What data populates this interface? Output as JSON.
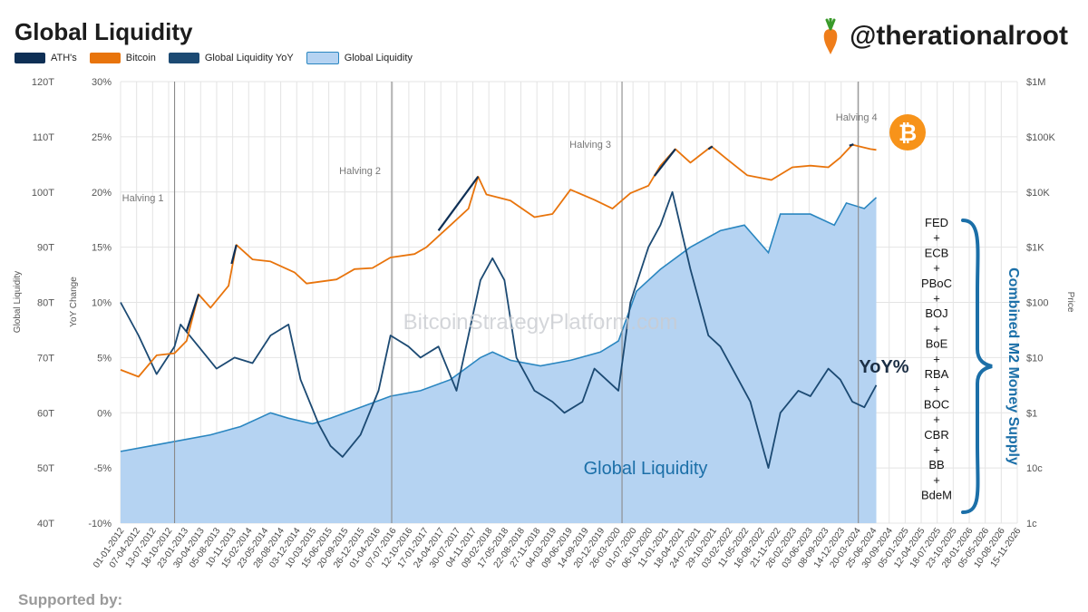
{
  "page": {
    "title": "Global Liquidity",
    "handle": "@therationalroot",
    "supported_by": "Supported by:"
  },
  "colors": {
    "ath": "#0e2f55",
    "bitcoin": "#e8740c",
    "yoy": "#1c4a73",
    "liquidity_fill": "#b5d3f2",
    "liquidity_line": "#2a86c0",
    "annotation": "#1b6fa8",
    "grid": "#e4e4e4",
    "halving": "#8a8a8a"
  },
  "chart_data": {
    "type": "line",
    "title": "Global Liquidity",
    "legend": [
      {
        "name": "ATH's",
        "color": "#0e2f55",
        "style": "line"
      },
      {
        "name": "Bitcoin",
        "color": "#e8740c",
        "style": "line"
      },
      {
        "name": "Global Liquidity YoY",
        "color": "#1c4a73",
        "style": "line"
      },
      {
        "name": "Global Liquidity",
        "color": "#b5d3f2",
        "style": "area"
      }
    ],
    "axes": {
      "left_liquidity": {
        "label": "Global Liquidity",
        "range": [
          40,
          120
        ],
        "ticks": [
          "40T",
          "50T",
          "60T",
          "70T",
          "80T",
          "90T",
          "100T",
          "110T",
          "120T"
        ]
      },
      "left_yoy": {
        "label": "YoY Change",
        "range": [
          -10,
          30
        ],
        "ticks": [
          "-10%",
          "-5%",
          "0%",
          "5%",
          "10%",
          "15%",
          "20%",
          "25%",
          "30%"
        ]
      },
      "right_price": {
        "label": "Price",
        "scale": "log",
        "range": [
          0.01,
          1000000
        ],
        "ticks": [
          "1c",
          "10c",
          "$1",
          "$10",
          "$100",
          "$1K",
          "$10K",
          "$100K",
          "$1M"
        ]
      },
      "x_dates": [
        "01-01-2012",
        "07-04-2012",
        "13-07-2012",
        "18-10-2012",
        "23-01-2013",
        "30-04-2013",
        "05-08-2013",
        "10-11-2013",
        "15-02-2014",
        "23-05-2014",
        "28-08-2014",
        "03-12-2014",
        "10-03-2015",
        "15-06-2015",
        "20-09-2015",
        "26-12-2015",
        "01-04-2016",
        "07-07-2016",
        "12-10-2016",
        "17-01-2017",
        "24-04-2017",
        "30-07-2017",
        "04-11-2017",
        "09-02-2018",
        "17-05-2018",
        "22-08-2018",
        "27-11-2018",
        "04-03-2019",
        "09-06-2019",
        "14-09-2019",
        "20-12-2019",
        "26-03-2020",
        "01-07-2020",
        "06-10-2020",
        "11-01-2021",
        "18-04-2021",
        "24-07-2021",
        "29-10-2021",
        "03-02-2022",
        "11-05-2022",
        "16-08-2022",
        "21-11-2022",
        "26-02-2023",
        "03-06-2023",
        "08-09-2023",
        "14-12-2023",
        "20-03-2024",
        "25-06-2024",
        "30-09-2024",
        "05-01-2025",
        "12-04-2025",
        "18-07-2025",
        "23-10-2025",
        "28-01-2026",
        "05-05-2026",
        "10-08-2026",
        "15-11-2026"
      ]
    },
    "halvings": [
      {
        "label": "Halving 1",
        "year": 2012.9
      },
      {
        "label": "Halving 2",
        "year": 2016.52
      },
      {
        "label": "Halving 3",
        "year": 2020.36
      },
      {
        "label": "Halving 4",
        "year": 2024.3
      }
    ],
    "series": [
      {
        "name": "Global Liquidity",
        "unit": "T USD",
        "points": [
          [
            2012.0,
            53
          ],
          [
            2012.5,
            54
          ],
          [
            2013.0,
            55
          ],
          [
            2013.5,
            56
          ],
          [
            2014.0,
            57.5
          ],
          [
            2014.5,
            60
          ],
          [
            2014.8,
            59
          ],
          [
            2015.2,
            58
          ],
          [
            2015.5,
            59
          ],
          [
            2016.0,
            61
          ],
          [
            2016.5,
            63
          ],
          [
            2017.0,
            64
          ],
          [
            2017.5,
            66
          ],
          [
            2018.0,
            70
          ],
          [
            2018.2,
            71
          ],
          [
            2018.5,
            69.5
          ],
          [
            2019.0,
            68.5
          ],
          [
            2019.5,
            69.5
          ],
          [
            2020.0,
            71
          ],
          [
            2020.3,
            73
          ],
          [
            2020.6,
            82
          ],
          [
            2021.0,
            86
          ],
          [
            2021.5,
            90
          ],
          [
            2022.0,
            93
          ],
          [
            2022.4,
            94
          ],
          [
            2022.8,
            89
          ],
          [
            2023.0,
            96
          ],
          [
            2023.5,
            96
          ],
          [
            2023.9,
            94
          ],
          [
            2024.1,
            98
          ],
          [
            2024.4,
            97
          ],
          [
            2024.6,
            99
          ]
        ]
      },
      {
        "name": "Global Liquidity YoY",
        "unit": "%",
        "points": [
          [
            2012.0,
            10
          ],
          [
            2012.3,
            7
          ],
          [
            2012.6,
            3.5
          ],
          [
            2012.9,
            6
          ],
          [
            2013.0,
            8
          ],
          [
            2013.3,
            6
          ],
          [
            2013.6,
            4
          ],
          [
            2013.9,
            5
          ],
          [
            2014.2,
            4.5
          ],
          [
            2014.5,
            7
          ],
          [
            2014.8,
            8
          ],
          [
            2015.0,
            3
          ],
          [
            2015.3,
            -1
          ],
          [
            2015.5,
            -3
          ],
          [
            2015.7,
            -4
          ],
          [
            2016.0,
            -2
          ],
          [
            2016.3,
            2
          ],
          [
            2016.5,
            7
          ],
          [
            2016.8,
            6
          ],
          [
            2017.0,
            5
          ],
          [
            2017.3,
            6
          ],
          [
            2017.6,
            2
          ],
          [
            2017.8,
            7
          ],
          [
            2018.0,
            12
          ],
          [
            2018.2,
            14
          ],
          [
            2018.4,
            12
          ],
          [
            2018.6,
            5
          ],
          [
            2018.9,
            2
          ],
          [
            2019.2,
            1
          ],
          [
            2019.4,
            0
          ],
          [
            2019.7,
            1
          ],
          [
            2019.9,
            4
          ],
          [
            2020.1,
            3
          ],
          [
            2020.3,
            2
          ],
          [
            2020.5,
            10
          ],
          [
            2020.8,
            15
          ],
          [
            2021.0,
            17
          ],
          [
            2021.2,
            20
          ],
          [
            2021.5,
            13
          ],
          [
            2021.8,
            7
          ],
          [
            2022.0,
            6
          ],
          [
            2022.3,
            3
          ],
          [
            2022.5,
            1
          ],
          [
            2022.7,
            -3
          ],
          [
            2022.8,
            -5
          ],
          [
            2023.0,
            0
          ],
          [
            2023.3,
            2
          ],
          [
            2023.5,
            1.5
          ],
          [
            2023.8,
            4
          ],
          [
            2024.0,
            3
          ],
          [
            2024.2,
            1
          ],
          [
            2024.4,
            0.5
          ],
          [
            2024.6,
            2.5
          ]
        ]
      },
      {
        "name": "Bitcoin",
        "unit": "USD",
        "points": [
          [
            2012.0,
            6
          ],
          [
            2012.3,
            4.5
          ],
          [
            2012.6,
            11
          ],
          [
            2012.9,
            12
          ],
          [
            2013.1,
            20
          ],
          [
            2013.3,
            140
          ],
          [
            2013.5,
            80
          ],
          [
            2013.8,
            200
          ],
          [
            2013.93,
            1100
          ],
          [
            2014.2,
            600
          ],
          [
            2014.5,
            550
          ],
          [
            2014.9,
            350
          ],
          [
            2015.1,
            220
          ],
          [
            2015.6,
            260
          ],
          [
            2015.9,
            400
          ],
          [
            2016.2,
            420
          ],
          [
            2016.5,
            650
          ],
          [
            2016.9,
            750
          ],
          [
            2017.1,
            1000
          ],
          [
            2017.5,
            2500
          ],
          [
            2017.8,
            5000
          ],
          [
            2017.96,
            19000
          ],
          [
            2018.1,
            9000
          ],
          [
            2018.5,
            7000
          ],
          [
            2018.9,
            3500
          ],
          [
            2019.2,
            4000
          ],
          [
            2019.5,
            11000
          ],
          [
            2019.9,
            7200
          ],
          [
            2020.2,
            5000
          ],
          [
            2020.5,
            9500
          ],
          [
            2020.8,
            13000
          ],
          [
            2021.0,
            30000
          ],
          [
            2021.25,
            60000
          ],
          [
            2021.5,
            34000
          ],
          [
            2021.85,
            67000
          ],
          [
            2022.1,
            40000
          ],
          [
            2022.45,
            20000
          ],
          [
            2022.85,
            16500
          ],
          [
            2023.2,
            28000
          ],
          [
            2023.5,
            30000
          ],
          [
            2023.8,
            28000
          ],
          [
            2024.0,
            42000
          ],
          [
            2024.2,
            72000
          ],
          [
            2024.5,
            60000
          ],
          [
            2024.6,
            58000
          ]
        ]
      }
    ],
    "ath_segments": [
      [
        [
          2013.1,
          30
        ],
        [
          2013.3,
          140
        ]
      ],
      [
        [
          2013.85,
          500
        ],
        [
          2013.93,
          1100
        ]
      ],
      [
        [
          2017.3,
          2000
        ],
        [
          2017.96,
          19000
        ]
      ],
      [
        [
          2020.9,
          19500
        ],
        [
          2021.25,
          60000
        ]
      ],
      [
        [
          2021.8,
          60000
        ],
        [
          2021.87,
          67000
        ]
      ],
      [
        [
          2024.15,
          69000
        ],
        [
          2024.22,
          73000
        ]
      ]
    ],
    "annotations": {
      "yoy_label": "YoY%",
      "liquidity_label": "Global Liquidity",
      "watermark": "BitcoinStrategyPlatform.com",
      "m2_label": "Combined M2 Money Supply",
      "central_banks": [
        "FED",
        "+",
        "ECB",
        "+",
        "PBoC",
        "+",
        "BOJ",
        "+",
        "BoE",
        "+",
        "RBA",
        "+",
        "BOC",
        "+",
        "CBR",
        "+",
        "BB",
        "+",
        "BdeM"
      ]
    }
  }
}
